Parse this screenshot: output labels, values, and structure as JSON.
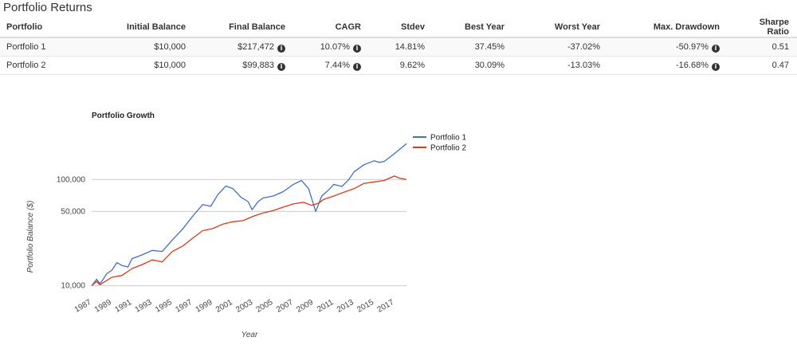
{
  "page": {
    "title": "Portfolio Returns"
  },
  "table": {
    "headers": [
      "Portfolio",
      "Initial Balance",
      "Final Balance",
      "CAGR",
      "Stdev",
      "Best Year",
      "Worst Year",
      "Max. Drawdown",
      "Sharpe Ratio"
    ],
    "rows": [
      {
        "portfolio": "Portfolio 1",
        "initial_balance": "$10,000",
        "final_balance": "$217,472",
        "cagr": "10.07%",
        "stdev": "14.81%",
        "best_year": "37.45%",
        "worst_year": "-37.02%",
        "max_drawdown": "-50.97%",
        "sharpe_ratio": "0.51"
      },
      {
        "portfolio": "Portfolio 2",
        "initial_balance": "$10,000",
        "final_balance": "$99,883",
        "cagr": "7.44%",
        "stdev": "9.62%",
        "best_year": "30.09%",
        "worst_year": "-13.03%",
        "max_drawdown": "-16.68%",
        "sharpe_ratio": "0.47"
      }
    ],
    "info_icon": "info-icon"
  },
  "chart_data": {
    "type": "line",
    "title": "Portfolio Growth",
    "xlabel": "Year",
    "ylabel": "Portfolio Balance ($)",
    "y_scale": "log",
    "ylim": [
      8500,
      260000
    ],
    "xlim": [
      1987,
      2018.2
    ],
    "grid": true,
    "legend_position": "top-right",
    "x_tick_labels": [
      "1987",
      "1989",
      "1991",
      "1993",
      "1995",
      "1997",
      "1999",
      "2001",
      "2003",
      "2005",
      "2007",
      "2009",
      "2011",
      "2013",
      "2015",
      "2017"
    ],
    "y_tick_values": [
      10000,
      50000,
      100000
    ],
    "y_tick_labels": [
      "10,000",
      "50,000",
      "100,000"
    ],
    "series": [
      {
        "name": "Portfolio 1",
        "color": "#3f6fc9",
        "points": [
          [
            1987.0,
            10000
          ],
          [
            1987.5,
            11500
          ],
          [
            1987.8,
            10500
          ],
          [
            1988.0,
            11000
          ],
          [
            1988.5,
            13000
          ],
          [
            1989.0,
            14000
          ],
          [
            1989.5,
            16500
          ],
          [
            1990.0,
            15500
          ],
          [
            1990.6,
            15000
          ],
          [
            1991.0,
            18000
          ],
          [
            1992.0,
            19500
          ],
          [
            1993.0,
            21500
          ],
          [
            1994.0,
            21000
          ],
          [
            1995.0,
            27000
          ],
          [
            1996.0,
            34000
          ],
          [
            1997.0,
            45000
          ],
          [
            1998.0,
            58000
          ],
          [
            1998.8,
            56000
          ],
          [
            1999.5,
            72000
          ],
          [
            2000.3,
            87000
          ],
          [
            2001.0,
            82000
          ],
          [
            2001.8,
            68000
          ],
          [
            2002.5,
            62000
          ],
          [
            2002.9,
            52000
          ],
          [
            2003.5,
            62000
          ],
          [
            2004.0,
            67000
          ],
          [
            2005.0,
            70000
          ],
          [
            2006.0,
            77000
          ],
          [
            2007.0,
            90000
          ],
          [
            2007.8,
            98000
          ],
          [
            2008.5,
            82000
          ],
          [
            2009.2,
            50000
          ],
          [
            2009.8,
            70000
          ],
          [
            2010.5,
            80000
          ],
          [
            2011.0,
            90000
          ],
          [
            2011.8,
            86000
          ],
          [
            2012.5,
            100000
          ],
          [
            2013.0,
            118000
          ],
          [
            2014.0,
            138000
          ],
          [
            2015.0,
            150000
          ],
          [
            2015.5,
            145000
          ],
          [
            2016.0,
            148000
          ],
          [
            2017.0,
            175000
          ],
          [
            2018.0,
            210000
          ],
          [
            2018.2,
            217472
          ]
        ]
      },
      {
        "name": "Portfolio 2",
        "color": "#d93a1a",
        "points": [
          [
            1987.0,
            10000
          ],
          [
            1987.5,
            11000
          ],
          [
            1987.8,
            10200
          ],
          [
            1988.0,
            10500
          ],
          [
            1989.0,
            12000
          ],
          [
            1990.0,
            12500
          ],
          [
            1991.0,
            14500
          ],
          [
            1992.0,
            15800
          ],
          [
            1993.0,
            17500
          ],
          [
            1994.0,
            16800
          ],
          [
            1995.0,
            21000
          ],
          [
            1996.0,
            23500
          ],
          [
            1997.0,
            28000
          ],
          [
            1998.0,
            33000
          ],
          [
            1999.0,
            34500
          ],
          [
            2000.0,
            38000
          ],
          [
            2001.0,
            40000
          ],
          [
            2002.0,
            41000
          ],
          [
            2003.0,
            45000
          ],
          [
            2004.0,
            48500
          ],
          [
            2005.0,
            51000
          ],
          [
            2006.0,
            55000
          ],
          [
            2007.0,
            59000
          ],
          [
            2008.0,
            61000
          ],
          [
            2008.8,
            57000
          ],
          [
            2009.5,
            60000
          ],
          [
            2010.0,
            65000
          ],
          [
            2011.0,
            70000
          ],
          [
            2012.0,
            76000
          ],
          [
            2013.0,
            82000
          ],
          [
            2014.0,
            92000
          ],
          [
            2015.0,
            95000
          ],
          [
            2016.0,
            98000
          ],
          [
            2017.0,
            108000
          ],
          [
            2017.5,
            103000
          ],
          [
            2018.0,
            101000
          ],
          [
            2018.2,
            99883
          ]
        ]
      }
    ]
  }
}
